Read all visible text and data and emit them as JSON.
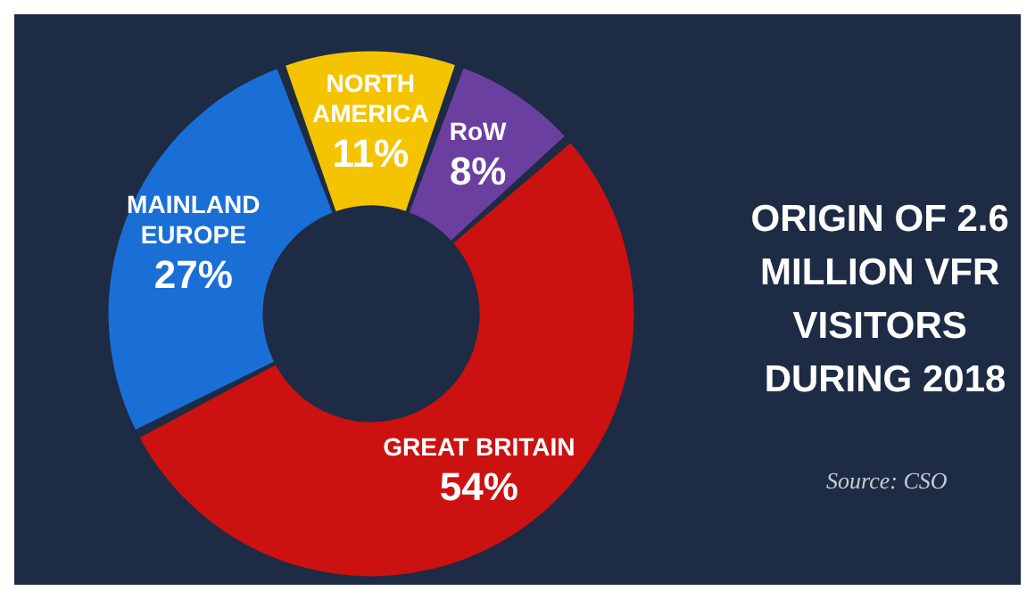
{
  "chart_data": {
    "type": "donut",
    "title": "ORIGIN OF 2.6 MILLION VFR VISITORS DURING 2018",
    "annotations": [
      "Source: CSO"
    ],
    "categories": [
      "NORTH AMERICA",
      "RoW",
      "GREAT BRITAIN",
      "MAINLAND EUROPE"
    ],
    "values": [
      11,
      8,
      54,
      27
    ],
    "colors": [
      "#f5c400",
      "#6b3fa0",
      "#cc1111",
      "#1a6fd6"
    ],
    "value_labels": [
      "11%",
      "8%",
      "54%",
      "27%"
    ],
    "legend": false
  }
}
